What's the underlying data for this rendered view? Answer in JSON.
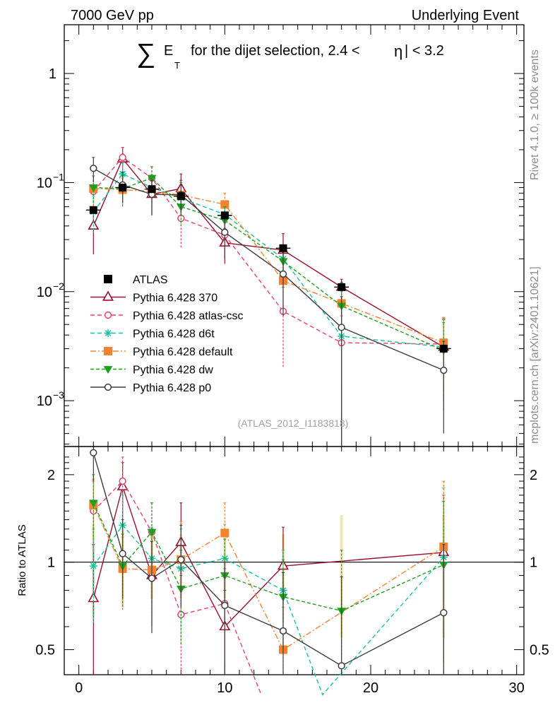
{
  "header": {
    "left": "7000 GeV pp",
    "right": "Underlying Event"
  },
  "side_labels": {
    "rivet": "Rivet 4.1.0, ≥ 100k events",
    "mcplots": "mcplots.cern.ch [arXiv:2401.10621]"
  },
  "watermark": "(ATLAS_2012_I1183818)",
  "chart_data": [
    {
      "type": "line",
      "panel": "main",
      "title_parts": {
        "sum": "∑",
        "et_letter": "E",
        "et_sub": "T",
        "mid": "for the dijet selection, 2.4 <",
        "eta": "η",
        "end": "| < 3.2"
      },
      "yscale": "log",
      "xlim": [
        -1,
        30.5
      ],
      "ylim": [
        0.00038,
        2.8
      ],
      "ytick_values": [
        0.001,
        0.01,
        0.1,
        1
      ],
      "ytick_labels": [
        {
          "base": "10",
          "exp": "−3"
        },
        {
          "base": "10",
          "exp": "−2"
        },
        {
          "base": "10",
          "exp": "−1"
        },
        {
          "base": "1",
          "exp": ""
        }
      ],
      "legend_position": "lower-left",
      "series": [
        {
          "name": "ATLAS",
          "color": "#000000",
          "dash": "solid",
          "marker": "square-filled",
          "show_line": false,
          "x": [
            1,
            3,
            5,
            7,
            10,
            14,
            18,
            25
          ],
          "y": [
            0.056,
            0.09,
            0.087,
            0.075,
            0.05,
            0.025,
            0.011,
            0.003
          ],
          "xerr": [
            0.5,
            0.5,
            0.5,
            0.5,
            0.5,
            0.5,
            0.5,
            0.5
          ]
        },
        {
          "name": "Pythia 6.428 370",
          "color": "#9a0f2b",
          "dash": "solid",
          "marker": "triangle-up-open",
          "x": [
            1,
            3,
            5,
            7,
            10,
            14,
            18,
            25
          ],
          "y": [
            0.04,
            0.165,
            0.078,
            0.088,
            0.028,
            0.024,
            0.011,
            0.0031
          ],
          "ylow": [
            0.022,
            0.12,
            0.05,
            0.055,
            0.018,
            0.014,
            0.0001,
            0.0012
          ],
          "yhigh": [
            0.058,
            0.21,
            0.105,
            0.12,
            0.038,
            0.034,
            0.013,
            0.0056
          ]
        },
        {
          "name": "Pythia 6.428 atlas-csc",
          "color": "#e8406a",
          "dash": "6,4",
          "marker": "circle-open",
          "x": [
            1,
            3,
            5,
            7,
            10,
            14,
            18,
            25
          ],
          "y": [
            0.083,
            0.17,
            0.11,
            0.047,
            0.033,
            0.0066,
            0.0034,
            0.0033
          ],
          "ylow": [
            0.05,
            0.13,
            0.08,
            0.025,
            0.02,
            0.002,
            0.0001,
            0.001
          ],
          "yhigh": [
            0.115,
            0.21,
            0.14,
            0.07,
            0.046,
            0.011,
            0.006,
            0.0058
          ]
        },
        {
          "name": "Pythia 6.428 d6t",
          "color": "#18c29c",
          "dash": "6,4",
          "marker": "star",
          "x": [
            1,
            3,
            5,
            7,
            10,
            14,
            18,
            25
          ],
          "y": [
            0.054,
            0.12,
            0.09,
            0.072,
            0.051,
            0.02,
            0.0039,
            0.0031
          ],
          "ylow": [
            0.035,
            0.09,
            0.065,
            0.045,
            0.035,
            0.013,
            0.0001,
            0.0008
          ],
          "yhigh": [
            0.075,
            0.15,
            0.115,
            0.1,
            0.067,
            0.027,
            0.01,
            0.0055
          ]
        },
        {
          "name": "Pythia 6.428 default",
          "color": "#f58231",
          "dash": "8,3,2,3",
          "marker": "square-filled",
          "x": [
            1,
            3,
            5,
            7,
            10,
            14,
            18,
            25
          ],
          "y": [
            0.088,
            0.086,
            0.083,
            0.077,
            0.063,
            0.0126,
            0.0078,
            0.0034
          ],
          "ylow": [
            0.06,
            0.06,
            0.06,
            0.05,
            0.045,
            0.007,
            0.002,
            0.001
          ],
          "yhigh": [
            0.115,
            0.11,
            0.105,
            0.1,
            0.08,
            0.018,
            0.012,
            0.0058
          ]
        },
        {
          "name": "Pythia 6.428 dw",
          "color": "#1ea01e",
          "dash": "5,3",
          "marker": "triangle-down-filled",
          "x": [
            1,
            3,
            5,
            7,
            10,
            14,
            18,
            25
          ],
          "y": [
            0.09,
            0.088,
            0.11,
            0.06,
            0.045,
            0.019,
            0.0074,
            0.0029
          ],
          "ylow": [
            0.065,
            0.06,
            0.08,
            0.04,
            0.03,
            0.012,
            0.002,
            0.0008
          ],
          "yhigh": [
            0.115,
            0.115,
            0.14,
            0.08,
            0.06,
            0.026,
            0.012,
            0.0052
          ]
        },
        {
          "name": "Pythia 6.428 p0",
          "color": "#3c3c3c",
          "dash": "solid",
          "marker": "circle-open",
          "x": [
            1,
            3,
            5,
            7,
            10,
            14,
            18,
            25
          ],
          "y": [
            0.135,
            0.095,
            0.078,
            0.077,
            0.035,
            0.0145,
            0.0047,
            0.0019
          ],
          "ylow": [
            0.1,
            0.065,
            0.05,
            0.05,
            0.02,
            0.006,
            0.0001,
            0.0005
          ],
          "yhigh": [
            0.17,
            0.125,
            0.105,
            0.105,
            0.05,
            0.023,
            0.009,
            0.0035
          ]
        }
      ]
    },
    {
      "type": "line",
      "panel": "ratio",
      "ylabel": "Ratio to ATLAS",
      "yscale": "log",
      "xlim": [
        -1,
        30.5
      ],
      "ylim": [
        0.41,
        2.5
      ],
      "xticks": [
        0,
        10,
        20,
        30
      ],
      "xtick_labels": [
        "0",
        "10",
        "20",
        "30"
      ],
      "yticks": [
        0.5,
        1,
        2
      ],
      "ytick_labels": [
        "0.5",
        "1",
        "2"
      ],
      "reference_line": 1,
      "band": {
        "x": [
          1,
          3,
          5,
          7,
          10,
          14,
          18,
          25
        ],
        "low": [
          0.65,
          0.7,
          0.75,
          0.75,
          0.75,
          0.75,
          0.55,
          0.55
        ],
        "high": [
          1.35,
          1.3,
          1.25,
          1.25,
          1.25,
          1.25,
          1.45,
          1.45
        ]
      },
      "series": [
        {
          "name": "Pythia 6.428 370",
          "x": [
            1,
            3,
            5,
            7,
            10,
            14,
            25
          ],
          "y": [
            0.75,
            1.82,
            0.9,
            1.17,
            0.6,
            0.97,
            1.08
          ],
          "ylow": [
            0.01,
            1.4,
            0.6,
            0.75,
            0.38,
            0.62,
            0.45
          ],
          "yhigh": [
            1.15,
            2.2,
            1.18,
            1.6,
            0.8,
            1.32,
            1.7
          ]
        },
        {
          "name": "Pythia 6.428 atlas-csc",
          "x": [
            1,
            3,
            5,
            7,
            10,
            12.5
          ],
          "y": [
            1.5,
            1.9,
            1.27,
            0.66,
            0.72,
            0.35
          ],
          "ylow": [
            1.1,
            1.5,
            0.95,
            0.35,
            0.45,
            0.35
          ],
          "yhigh": [
            1.9,
            2.3,
            1.6,
            0.9,
            0.95,
            0.35
          ]
        },
        {
          "name": "Pythia 6.428 d6t",
          "x": [
            1,
            3,
            5,
            7,
            10,
            14,
            16.7,
            25
          ],
          "y": [
            0.97,
            1.34,
            1.03,
            0.95,
            1.03,
            0.8,
            0.35,
            1.04
          ],
          "ylow": [
            0.62,
            1.0,
            0.72,
            0.6,
            0.7,
            0.52,
            0.35,
            0.5
          ],
          "yhigh": [
            1.3,
            1.7,
            1.32,
            1.3,
            1.35,
            1.1,
            0.35,
            1.8
          ]
        },
        {
          "name": "Pythia 6.428 default",
          "x": [
            1,
            3,
            5,
            7,
            10,
            14,
            25
          ],
          "y": [
            1.57,
            0.95,
            0.94,
            1.02,
            1.26,
            0.5,
            1.13
          ],
          "ylow": [
            1.2,
            0.68,
            0.64,
            0.68,
            0.9,
            0.3,
            0.4
          ],
          "yhigh": [
            1.93,
            1.22,
            1.22,
            1.38,
            1.6,
            0.7,
            1.9
          ]
        },
        {
          "name": "Pythia 6.428 dw",
          "x": [
            1,
            3,
            5,
            7,
            10,
            14,
            18,
            25
          ],
          "y": [
            1.6,
            0.97,
            1.27,
            0.81,
            0.9,
            0.76,
            0.68,
            0.98
          ],
          "ylow": [
            1.2,
            0.7,
            0.95,
            0.52,
            0.62,
            0.5,
            0.3,
            0.35
          ],
          "yhigh": [
            2.0,
            1.25,
            1.6,
            1.1,
            1.2,
            1.02,
            1.1,
            1.62
          ]
        },
        {
          "name": "Pythia 6.428 p0",
          "x": [
            1,
            3,
            5,
            7,
            10,
            14,
            18,
            25
          ],
          "y": [
            2.38,
            1.07,
            0.88,
            1.02,
            0.71,
            0.58,
            0.44,
            0.67
          ],
          "ylow": [
            1.9,
            0.75,
            0.57,
            0.7,
            0.4,
            0.25,
            0.25,
            0.2
          ],
          "yhigh": [
            2.4,
            1.4,
            1.18,
            1.34,
            1.0,
            0.92,
            0.89,
            1.15
          ]
        }
      ]
    }
  ]
}
